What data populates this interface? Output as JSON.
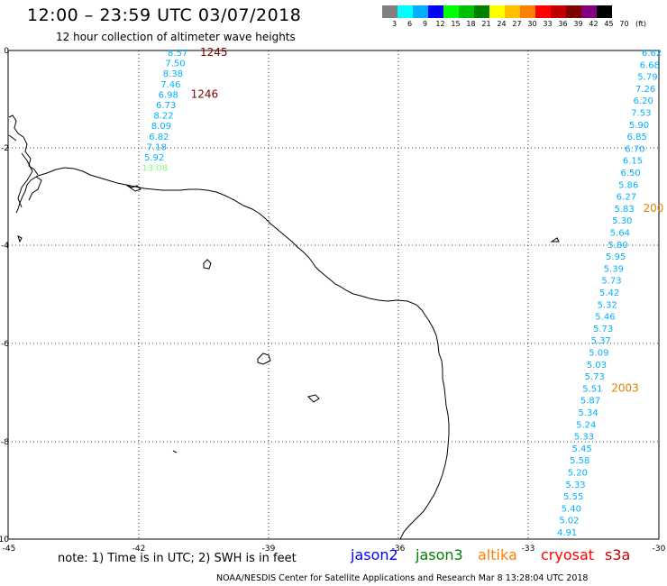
{
  "header": {
    "title": "12:00 – 23:59 UTC 03/07/2018",
    "subtitle": "12 hour collection of altimeter wave heights"
  },
  "legend": {
    "colors": [
      "#808080",
      "#00ffff",
      "#00b0ff",
      "#0000ff",
      "#00ff00",
      "#00c000",
      "#008000",
      "#ffff00",
      "#ffc000",
      "#ff8000",
      "#ff0000",
      "#c00000",
      "#800000",
      "#800080",
      "#000000"
    ],
    "labels": [
      "3",
      "6",
      "9",
      "12",
      "15",
      "18",
      "21",
      "24",
      "27",
      "30",
      "33",
      "36",
      "39",
      "42",
      "45",
      "70",
      "(ft)"
    ]
  },
  "axes": {
    "x_ticks": [
      "-45",
      "-42",
      "-39",
      "-36",
      "-33",
      "-30"
    ],
    "y_ticks": [
      "0",
      "-2",
      "-4",
      "-6",
      "-8",
      "-10"
    ]
  },
  "track_left": {
    "values": [
      "8.57",
      "7.50",
      "8.38",
      "7.46",
      "6.98",
      "6.73",
      "8.22",
      "8.09",
      "6.82",
      "7.18",
      "5.92",
      "13.08"
    ],
    "colors": [
      "#00b0ff",
      "#00b0ff",
      "#00b0ff",
      "#00b0ff",
      "#00b0ff",
      "#00b0ff",
      "#00b0ff",
      "#00b0ff",
      "#00b0ff",
      "#00b0ff",
      "#00b0ff",
      "#80ff80"
    ],
    "pass_labels": [
      {
        "text": "1245",
        "after": 0
      },
      {
        "text": "1246",
        "after": 4
      }
    ],
    "pass_color": "#800000"
  },
  "track_right": {
    "values": [
      "6.62",
      "6.68",
      "5.79",
      "7.26",
      "6.20",
      "7.53",
      "5.90",
      "6.85",
      "6.70",
      "6.15",
      "6.50",
      "5.86",
      "6.27",
      "5.83",
      "5.30",
      "5.64",
      "5.80",
      "5.95",
      "5.39",
      "5.73",
      "5.42",
      "5.32",
      "5.46",
      "5.73",
      "5.37",
      "5.09",
      "5.03",
      "5.73",
      "5.51",
      "5.87",
      "5.34",
      "5.24",
      "5.33",
      "5.45",
      "5.58",
      "5.20",
      "5.33",
      "5.55",
      "5.40",
      "5.02",
      "4.91"
    ],
    "color": "#00b0ff",
    "pass_labels": [
      {
        "text": "200",
        "after": 13
      },
      {
        "text": "2003",
        "after": 28
      }
    ],
    "pass_color": "#e08000"
  },
  "note": "note: 1) Time is in UTC; 2) SWH is in feet",
  "satellites": [
    {
      "name": "jason2",
      "color": "#0000ff"
    },
    {
      "name": "jason3",
      "color": "#008000"
    },
    {
      "name": "altika",
      "color": "#ff8000"
    },
    {
      "name": "cryosat",
      "color": "#ff0000"
    },
    {
      "name": "s3a",
      "color": "#c00000"
    }
  ],
  "footer": "NOAA/NESDIS Center for Satellite Applications and Research   Mar  8 13:28:04 UTC 2018"
}
